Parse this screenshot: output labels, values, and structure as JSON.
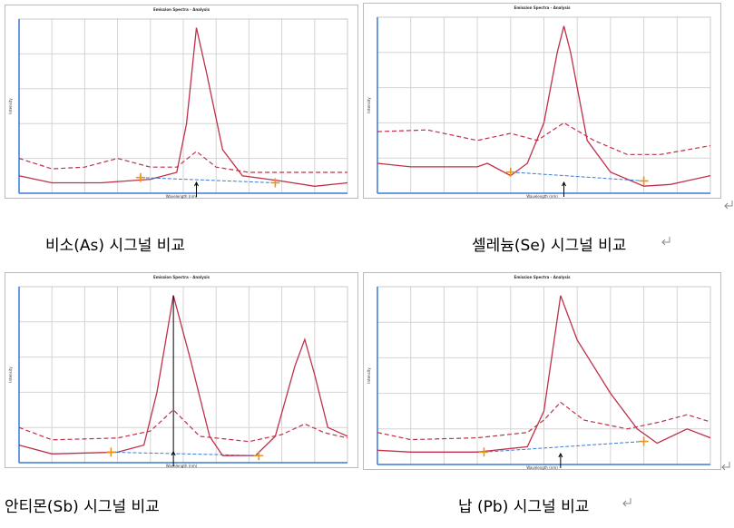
{
  "panels": [
    {
      "title": "Emission Spectra - Analysis",
      "x_label": "Wavelength (nm)",
      "y_label": "Intensity",
      "caption": "비소(As) 시그널 비교"
    },
    {
      "title": "Emission Spectra - Analysis",
      "x_label": "Wavelength (nm)",
      "y_label": "Intensity",
      "caption": "셀레늄(Se) 시그널 비교"
    },
    {
      "title": "Emission Spectra - Analysis",
      "x_label": "Wavelength (nm)",
      "y_label": "Intensity",
      "caption": "안티몬(Sb) 시그널 비교"
    },
    {
      "title": "Emission Spectra - Analysis",
      "x_label": "Wavelength (nm)",
      "y_label": "Intensity",
      "caption": "납 (Pb) 시그널 비교"
    }
  ]
}
